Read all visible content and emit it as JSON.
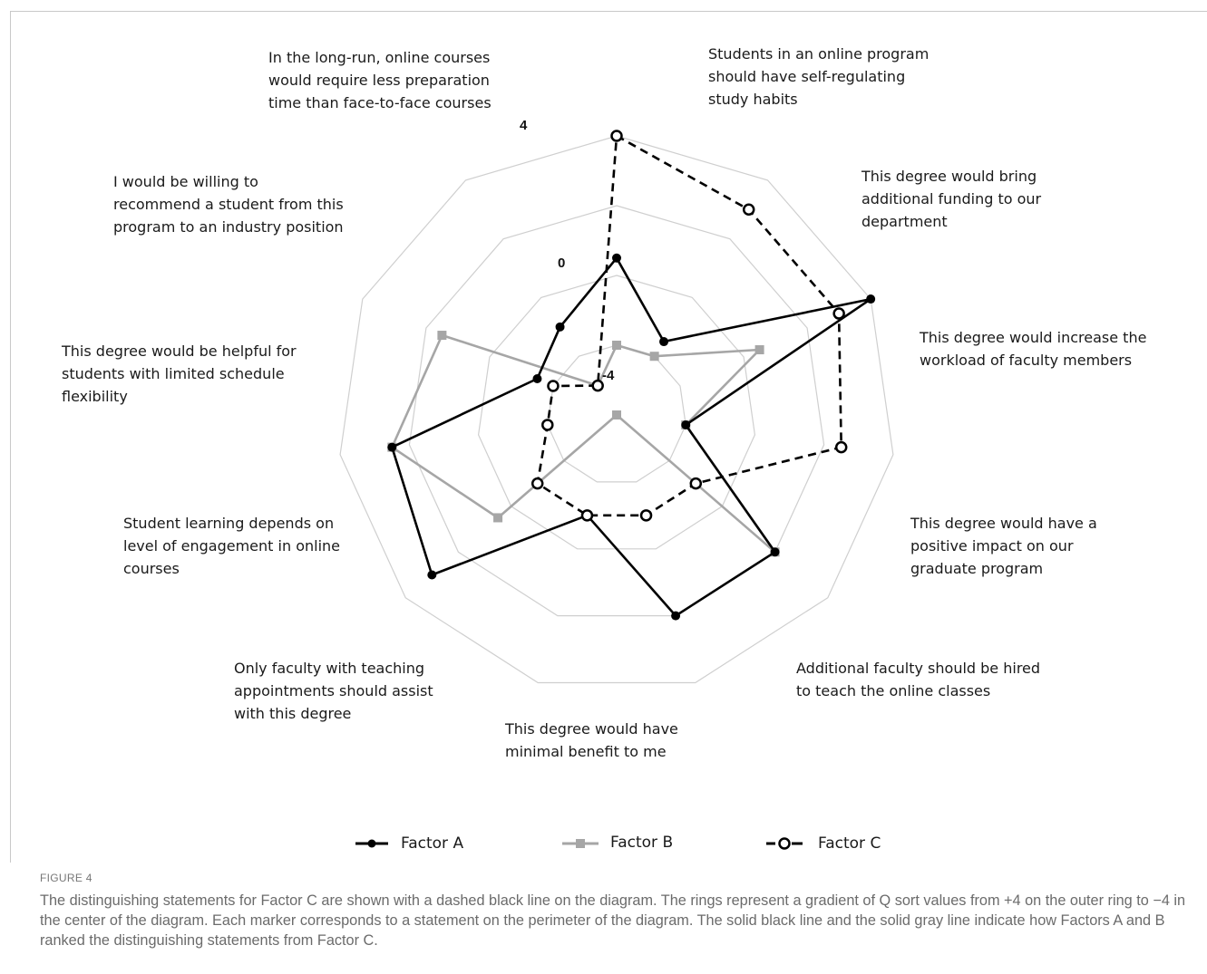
{
  "chart_data": {
    "type": "radar",
    "r_range": [
      -4,
      4
    ],
    "ring_labels": [
      "4",
      "0",
      "-4"
    ],
    "categories": [
      "Students in an online program should have self-regulating study habits",
      "This degree would bring additional funding to our department",
      "This degree would increase the workload of faculty members",
      "This degree would have a positive impact on our graduate program",
      "Additional faculty should be hired to teach the online classes",
      "This degree would have minimal benefit to me",
      "Only faculty with teaching appointments should assist with this degree",
      "Student learning depends on level of engagement in online courses",
      "This degree would be helpful for students with limited schedule flexibility",
      "I would be willing to recommend a student from this program to an industry position",
      "In the long-run, online courses would require less preparation time than face-to-face courses"
    ],
    "series": [
      {
        "name": "Factor A",
        "color": "#000000",
        "dash": false,
        "marker": "circle-filled",
        "values": [
          0.5,
          -1.5,
          4,
          -2,
          2,
          2,
          -1,
          3,
          2.5,
          -1.5,
          -1
        ]
      },
      {
        "name": "Factor B",
        "color": "#a6a6a6",
        "dash": false,
        "marker": "square",
        "values": [
          -2,
          -2,
          0.5,
          -2,
          2,
          -4,
          -4,
          0.5,
          2.5,
          1.5,
          -3
        ]
      },
      {
        "name": "Factor C",
        "color": "#000000",
        "dash": true,
        "marker": "circle-open",
        "values": [
          4,
          3,
          3,
          2.5,
          -1,
          -1,
          -1,
          -1,
          -2,
          -2,
          -3
        ]
      }
    ],
    "legend_position": "bottom"
  },
  "labels": {
    "stmt_0": [
      "Students in an online program",
      "should have self-regulating",
      "study habits"
    ],
    "stmt_1": [
      "This degree would bring",
      "additional funding to our",
      "department"
    ],
    "stmt_2": [
      "This degree would increase the",
      "workload of faculty members"
    ],
    "stmt_3": [
      "This degree would have a",
      "positive impact on our",
      "graduate program"
    ],
    "stmt_4": [
      "Additional faculty should be hired",
      "to teach the online classes"
    ],
    "stmt_5": [
      "This degree would have",
      "minimal benefit to me"
    ],
    "stmt_6": [
      "Only faculty with teaching",
      "appointments should assist",
      "with this degree"
    ],
    "stmt_7": [
      "Student learning depends on",
      "level of engagement in online",
      "courses"
    ],
    "stmt_8": [
      "This degree would be helpful for",
      "students with limited schedule",
      "flexibility"
    ],
    "stmt_9": [
      "I would be willing to",
      "recommend a student from this",
      "program to an industry position"
    ],
    "stmt_10": [
      "In the long-run, online courses",
      "would require less preparation",
      "time than face-to-face courses"
    ]
  },
  "legend": {
    "a": "Factor A",
    "b": "Factor B",
    "c": "Factor C"
  },
  "figure_label": "FIGURE 4",
  "caption": "The distinguishing statements for Factor C are shown with a dashed black line on the diagram. The rings represent a gradient of Q sort values from +4 on the outer ring to −4 in the center of the diagram. Each marker corresponds to a statement on the perimeter of the diagram. The solid black line and the solid gray line indicate how Factors A and B ranked the distinguishing statements from Factor C."
}
